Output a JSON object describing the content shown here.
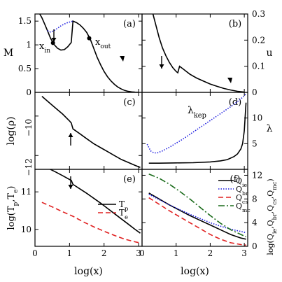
{
  "colors": {
    "black": "#000000",
    "blue": "#1f1fe0",
    "red": "#e02020",
    "green": "#1a6b1a"
  },
  "chart_data": [
    {
      "panel": "(a)",
      "type": "line",
      "ylabel": "M",
      "xlim": [
        0,
        3.1
      ],
      "ylim": [
        0,
        1.65
      ],
      "yticks": [
        "0",
        "0.5",
        "1",
        "1.5"
      ],
      "annotations": [
        "x_in",
        "x_out"
      ],
      "series": [
        {
          "color": "black",
          "style": "solid",
          "x": [
            0.13,
            0.2,
            0.28,
            0.36,
            0.45,
            0.55,
            0.65,
            0.75,
            0.85,
            0.95,
            1.05,
            1.1,
            1.2,
            1.3,
            1.4,
            1.5,
            1.6,
            1.7,
            1.8,
            1.9,
            2.0,
            2.1,
            2.2,
            2.3,
            2.4,
            2.5,
            2.6,
            2.7,
            2.8,
            2.9,
            3.0
          ],
          "y": [
            1.66,
            1.57,
            1.44,
            1.3,
            1.14,
            1.01,
            0.93,
            0.89,
            0.9,
            0.96,
            1.05,
            1.5,
            1.47,
            1.42,
            1.35,
            1.26,
            1.12,
            0.93,
            0.74,
            0.58,
            0.44,
            0.33,
            0.24,
            0.17,
            0.11,
            0.07,
            0.04,
            0.02,
            0.01,
            0.005,
            0.002
          ]
        },
        {
          "color": "blue",
          "style": "dotted",
          "x": [
            0.36,
            0.45,
            0.55,
            0.65,
            0.75,
            0.85,
            0.95,
            1.05,
            1.1
          ],
          "y": [
            1.3,
            1.27,
            1.3,
            1.35,
            1.4,
            1.44,
            1.47,
            1.49,
            1.5
          ]
        }
      ],
      "markers": [
        {
          "x": 0.52,
          "y": 1.04
        },
        {
          "x": 1.57,
          "y": 1.14
        }
      ]
    },
    {
      "panel": "(b)",
      "type": "line",
      "ylabel": "u",
      "xlim": [
        0,
        3.1
      ],
      "ylim": [
        0,
        0.3
      ],
      "yticks": [
        "0",
        "0.1",
        "0.2",
        "0.3"
      ],
      "series": [
        {
          "color": "black",
          "style": "solid",
          "x": [
            0.3,
            0.4,
            0.5,
            0.6,
            0.7,
            0.8,
            0.9,
            1.0,
            1.05,
            1.1,
            1.2,
            1.3,
            1.4,
            1.6,
            1.8,
            2.0,
            2.2,
            2.4,
            2.6,
            2.8,
            3.0
          ],
          "y": [
            0.31,
            0.26,
            0.21,
            0.17,
            0.14,
            0.115,
            0.095,
            0.08,
            0.075,
            0.1,
            0.09,
            0.08,
            0.07,
            0.055,
            0.043,
            0.032,
            0.023,
            0.015,
            0.009,
            0.004,
            0.001
          ]
        }
      ]
    },
    {
      "panel": "(c)",
      "type": "line",
      "ylabel": "log(ρ)",
      "xlim": [
        0,
        3.1
      ],
      "ylim": [
        -12.7,
        -8.8
      ],
      "yticks": [
        "−10",
        "−12"
      ],
      "series": [
        {
          "color": "black",
          "style": "solid",
          "x": [
            0.2,
            0.4,
            0.6,
            0.8,
            1.0,
            1.05,
            1.1,
            1.3,
            1.5,
            1.7,
            1.9,
            2.1,
            2.3,
            2.5,
            2.7,
            2.9,
            3.05
          ],
          "y": [
            -9.0,
            -9.3,
            -9.6,
            -9.9,
            -10.25,
            -10.35,
            -10.65,
            -10.9,
            -11.15,
            -11.4,
            -11.6,
            -11.8,
            -12.0,
            -12.2,
            -12.35,
            -12.5,
            -12.6
          ]
        }
      ]
    },
    {
      "panel": "(d)",
      "type": "line",
      "ylabel": "λ",
      "xlim": [
        0,
        3.1
      ],
      "ylim": [
        0,
        15
      ],
      "yticks": [
        "5",
        "10"
      ],
      "annotations": [
        "λ_kep"
      ],
      "series": [
        {
          "name": "λkep",
          "color": "blue",
          "style": "dotted",
          "x": [
            0.15,
            0.25,
            0.35,
            0.45,
            0.6,
            0.8,
            1.0,
            1.2,
            1.4,
            1.6,
            1.8,
            2.0,
            2.2,
            2.4,
            2.6,
            2.8,
            3.0,
            3.05
          ],
          "y": [
            4.9,
            3.6,
            3.2,
            3.2,
            3.6,
            4.3,
            5.1,
            5.9,
            6.8,
            7.7,
            8.6,
            9.5,
            10.4,
            11.3,
            12.2,
            13.2,
            14.3,
            14.8
          ]
        },
        {
          "color": "black",
          "style": "solid",
          "x": [
            0.2,
            0.5,
            1.0,
            1.5,
            2.0,
            2.3,
            2.5,
            2.7,
            2.8,
            2.9,
            2.95,
            3.0,
            3.05
          ],
          "y": [
            1.2,
            1.2,
            1.25,
            1.3,
            1.45,
            1.65,
            1.9,
            2.5,
            3.0,
            4.0,
            5.0,
            7.5,
            13.0
          ]
        }
      ]
    },
    {
      "panel": "(e)",
      "type": "line",
      "ylabel": "log(Tp,Te)",
      "xlabel": "log(x)",
      "xlim": [
        0,
        3.1
      ],
      "ylim": [
        9.55,
        11.6
      ],
      "yticks": [
        "10",
        "11"
      ],
      "xticks": [
        "0",
        "1",
        "2",
        "3"
      ],
      "series": [
        {
          "name": "Tp",
          "color": "black",
          "style": "solid",
          "x": [
            0.2,
            0.4,
            0.6,
            0.8,
            1.0,
            1.05,
            1.1,
            1.3,
            1.5,
            1.7,
            1.9,
            2.1,
            2.3,
            2.5,
            2.7,
            2.9,
            3.05
          ],
          "y": [
            11.7,
            11.62,
            11.53,
            11.43,
            11.33,
            11.31,
            11.2,
            11.08,
            10.96,
            10.83,
            10.7,
            10.56,
            10.42,
            10.28,
            10.14,
            10.0,
            9.9
          ]
        },
        {
          "name": "Te",
          "color": "red",
          "style": "dashed",
          "x": [
            0.2,
            0.5,
            0.8,
            1.1,
            1.4,
            1.7,
            2.0,
            2.3,
            2.6,
            2.9,
            3.05
          ],
          "y": [
            10.72,
            10.6,
            10.47,
            10.35,
            10.2,
            10.07,
            9.95,
            9.84,
            9.74,
            9.67,
            9.64
          ]
        }
      ]
    },
    {
      "panel": "(f)",
      "type": "line",
      "ylabel": "log(Qie,Qbr,Qcs,Qmc)",
      "xlabel": "log(x)",
      "xlim": [
        0,
        3.1
      ],
      "ylim": [
        0,
        13
      ],
      "yticks": [
        "0",
        "4",
        "8",
        "12"
      ],
      "xticks": [
        "0",
        "1",
        "2",
        "3"
      ],
      "series": [
        {
          "name": "Qie",
          "color": "black",
          "style": "solid",
          "x": [
            0.2,
            0.5,
            0.8,
            1.1,
            1.4,
            1.7,
            2.0,
            2.3,
            2.6,
            2.9,
            3.05
          ],
          "y": [
            9.0,
            8.0,
            7.0,
            6.1,
            5.2,
            4.4,
            3.6,
            2.8,
            2.0,
            1.4,
            1.2
          ]
        },
        {
          "name": "Qbr",
          "color": "blue",
          "style": "dotted",
          "x": [
            0.2,
            0.5,
            0.8,
            1.1,
            1.4,
            1.7,
            2.0,
            2.3,
            2.6,
            2.9,
            3.05
          ],
          "y": [
            8.8,
            7.9,
            7.0,
            6.2,
            5.4,
            4.7,
            4.0,
            3.4,
            2.9,
            2.5,
            2.3
          ]
        },
        {
          "name": "Qcs",
          "color": "red",
          "style": "dashed",
          "x": [
            0.2,
            0.5,
            0.8,
            1.1,
            1.4,
            1.7,
            2.0,
            2.3,
            2.6,
            2.9,
            3.05
          ],
          "y": [
            8.2,
            7.1,
            6.0,
            5.0,
            4.0,
            3.0,
            2.0,
            1.2,
            0.6,
            0.3,
            0.2
          ]
        },
        {
          "name": "Qmc",
          "color": "green",
          "style": "dashdot",
          "x": [
            0.2,
            0.5,
            0.8,
            1.1,
            1.4,
            1.7,
            2.0,
            2.3,
            2.6,
            2.9,
            3.05
          ],
          "y": [
            12.2,
            11.5,
            10.5,
            9.3,
            8.0,
            6.6,
            5.2,
            3.9,
            2.8,
            2.0,
            1.6
          ]
        }
      ]
    }
  ]
}
